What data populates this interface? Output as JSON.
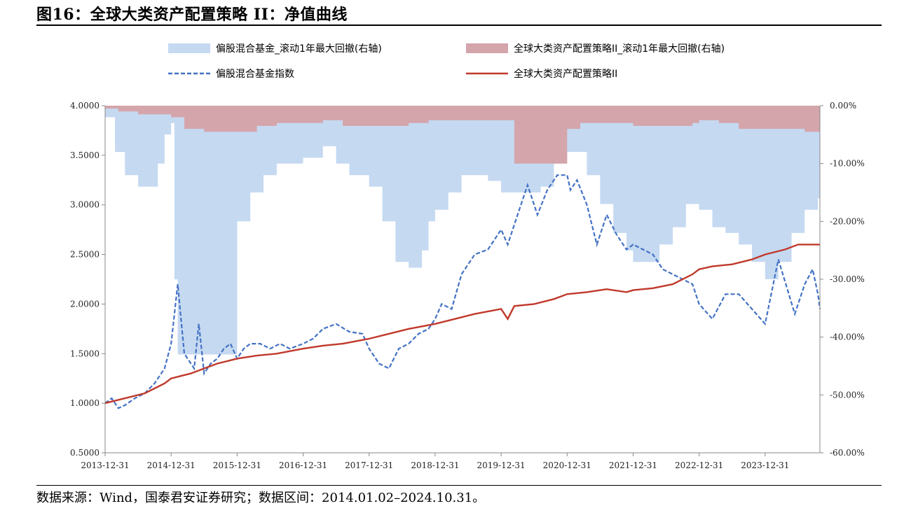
{
  "figure": {
    "title": "图16：全球大类资产配置策略 II：净值曲线",
    "source": "数据来源：Wind，国泰君安证券研究；数据区间：2014.01.02–2024.10.31。"
  },
  "colors": {
    "fund_index_line": "#4472C4",
    "strategy_line": "#C0392B",
    "fund_drawdown_area": "#C5D9F1",
    "strategy_drawdown_area": "#D4A5AB"
  },
  "chart_data": {
    "type": "line",
    "x_tick_labels": [
      "2013-12-31",
      "2014-12-31",
      "2015-12-31",
      "2016-12-31",
      "2017-12-31",
      "2018-12-31",
      "2019-12-31",
      "2020-12-31",
      "2021-12-31",
      "2022-12-31",
      "2023-12-31"
    ],
    "y_left": {
      "ticks": [
        "4.0000",
        "3.5000",
        "3.0000",
        "2.5000",
        "2.0000",
        "1.5000",
        "1.0000",
        "0.5000"
      ],
      "ylim": [
        0.5,
        4.0
      ]
    },
    "y_right": {
      "ticks": [
        "0.00%",
        "-10.00%",
        "-20.00%",
        "-30.00%",
        "-40.00%",
        "-50.00%",
        "-60.00%"
      ],
      "ylim": [
        -60,
        0
      ]
    },
    "legend": [
      {
        "name": "偏股混合基金_滚动1年最大回撤(右轴)",
        "kind": "area"
      },
      {
        "name": "全球大类资产配置策略II_滚动1年最大回撤(右轴)",
        "kind": "area"
      },
      {
        "name": "偏股混合基金指数",
        "kind": "dashed-line"
      },
      {
        "name": "全球大类资产配置策略II",
        "kind": "line"
      }
    ],
    "series": [
      {
        "name": "偏股混合基金指数",
        "axis": "left",
        "x": [
          2014.0,
          2014.1,
          2014.2,
          2014.3,
          2014.45,
          2014.6,
          2014.75,
          2014.9,
          2015.0,
          2015.1,
          2015.2,
          2015.35,
          2015.42,
          2015.5,
          2015.6,
          2015.7,
          2015.8,
          2015.9,
          2016.0,
          2016.1,
          2016.2,
          2016.35,
          2016.5,
          2016.65,
          2016.8,
          2017.0,
          2017.15,
          2017.3,
          2017.5,
          2017.7,
          2017.9,
          2018.0,
          2018.15,
          2018.3,
          2018.45,
          2018.6,
          2018.75,
          2018.9,
          2019.0,
          2019.1,
          2019.25,
          2019.4,
          2019.6,
          2019.8,
          2020.0,
          2020.1,
          2020.25,
          2020.4,
          2020.55,
          2020.7,
          2020.85,
          2021.0,
          2021.05,
          2021.15,
          2021.3,
          2021.45,
          2021.6,
          2021.75,
          2021.9,
          2022.0,
          2022.15,
          2022.3,
          2022.45,
          2022.6,
          2022.75,
          2022.9,
          2023.0,
          2023.2,
          2023.4,
          2023.6,
          2023.8,
          2024.0,
          2024.2,
          2024.45,
          2024.6,
          2024.72,
          2024.8,
          2024.83
        ],
        "values": [
          1.0,
          1.05,
          0.95,
          0.98,
          1.05,
          1.1,
          1.2,
          1.35,
          1.6,
          2.2,
          1.5,
          1.35,
          1.8,
          1.3,
          1.4,
          1.45,
          1.55,
          1.6,
          1.45,
          1.55,
          1.6,
          1.6,
          1.55,
          1.6,
          1.55,
          1.6,
          1.65,
          1.75,
          1.8,
          1.72,
          1.7,
          1.55,
          1.4,
          1.35,
          1.55,
          1.6,
          1.7,
          1.75,
          1.85,
          2.0,
          1.95,
          2.3,
          2.5,
          2.55,
          2.75,
          2.6,
          2.9,
          3.2,
          2.9,
          3.15,
          3.3,
          3.3,
          3.15,
          3.25,
          3.0,
          2.6,
          2.9,
          2.7,
          2.55,
          2.6,
          2.55,
          2.5,
          2.35,
          2.3,
          2.25,
          2.2,
          2.0,
          1.85,
          2.1,
          2.1,
          1.95,
          1.8,
          2.45,
          1.9,
          2.2,
          2.35,
          2.1,
          1.95
        ]
      },
      {
        "name": "全球大类资产配置策略II",
        "axis": "left",
        "x": [
          2014.0,
          2014.3,
          2014.6,
          2014.9,
          2015.0,
          2015.3,
          2015.5,
          2015.7,
          2016.0,
          2016.3,
          2016.6,
          2017.0,
          2017.3,
          2017.6,
          2018.0,
          2018.3,
          2018.6,
          2019.0,
          2019.3,
          2019.6,
          2020.0,
          2020.1,
          2020.2,
          2020.5,
          2020.8,
          2021.0,
          2021.3,
          2021.6,
          2021.9,
          2022.0,
          2022.3,
          2022.6,
          2022.9,
          2023.0,
          2023.2,
          2023.5,
          2023.8,
          2024.0,
          2024.3,
          2024.5,
          2024.83
        ],
        "values": [
          1.0,
          1.05,
          1.1,
          1.2,
          1.25,
          1.3,
          1.35,
          1.4,
          1.45,
          1.48,
          1.5,
          1.55,
          1.58,
          1.6,
          1.65,
          1.7,
          1.75,
          1.8,
          1.85,
          1.9,
          1.95,
          1.85,
          1.98,
          2.0,
          2.05,
          2.1,
          2.12,
          2.15,
          2.12,
          2.14,
          2.16,
          2.2,
          2.3,
          2.35,
          2.38,
          2.4,
          2.45,
          2.5,
          2.55,
          2.6,
          2.6
        ]
      },
      {
        "name": "偏股混合基金_滚动1年最大回撤(右轴)",
        "axis": "right",
        "x": [
          2014.0,
          2014.15,
          2014.3,
          2014.5,
          2014.7,
          2014.8,
          2014.9,
          2015.0,
          2015.05,
          2015.1,
          2015.4,
          2015.6,
          2015.9,
          2016.0,
          2016.2,
          2016.4,
          2016.6,
          2016.9,
          2017.0,
          2017.3,
          2017.5,
          2017.7,
          2018.0,
          2018.2,
          2018.4,
          2018.6,
          2018.8,
          2018.9,
          2019.0,
          2019.2,
          2019.4,
          2019.6,
          2019.8,
          2020.0,
          2020.2,
          2020.4,
          2020.6,
          2020.8,
          2021.0,
          2021.1,
          2021.3,
          2021.5,
          2021.7,
          2021.9,
          2022.0,
          2022.2,
          2022.4,
          2022.6,
          2022.8,
          2023.0,
          2023.2,
          2023.4,
          2023.6,
          2023.8,
          2024.0,
          2024.2,
          2024.4,
          2024.6,
          2024.8,
          2024.83
        ],
        "values": [
          -2,
          -8,
          -12,
          -14,
          -14,
          -10,
          -5,
          -3,
          -30,
          -43,
          -43,
          -43,
          -43,
          -20,
          -15,
          -12,
          -10,
          -10,
          -9,
          -7,
          -10,
          -12,
          -14,
          -20,
          -27,
          -28,
          -25,
          -20,
          -18,
          -15,
          -12,
          -12,
          -13,
          -15,
          -15,
          -15,
          -14,
          -10,
          -8,
          -8,
          -12,
          -17,
          -22,
          -25,
          -27,
          -27,
          -24,
          -21,
          -17,
          -18,
          -21,
          -22,
          -24,
          -27,
          -30,
          -27,
          -22,
          -18,
          -16,
          -15
        ]
      },
      {
        "name": "全球大类资产配置策略II_滚动1年最大回撤(右轴)",
        "axis": "right",
        "x": [
          2014.0,
          2014.2,
          2014.5,
          2014.8,
          2015.0,
          2015.2,
          2015.5,
          2015.8,
          2016.0,
          2016.3,
          2016.6,
          2016.9,
          2017.0,
          2017.3,
          2017.6,
          2017.9,
          2018.0,
          2018.3,
          2018.6,
          2018.9,
          2019.0,
          2019.3,
          2019.6,
          2019.9,
          2020.0,
          2020.2,
          2020.4,
          2020.6,
          2020.8,
          2021.0,
          2021.2,
          2021.5,
          2021.8,
          2022.0,
          2022.3,
          2022.6,
          2022.9,
          2023.0,
          2023.3,
          2023.6,
          2023.9,
          2024.0,
          2024.3,
          2024.6,
          2024.83
        ],
        "values": [
          -0.5,
          -1,
          -1.5,
          -1.5,
          -2,
          -4,
          -4.5,
          -4.5,
          -4.5,
          -3.5,
          -3,
          -3,
          -3,
          -2.5,
          -3.5,
          -3.5,
          -3.5,
          -3.5,
          -3,
          -2.5,
          -2.5,
          -2.5,
          -2.5,
          -2.5,
          -2.5,
          -10,
          -10,
          -10,
          -10,
          -4,
          -3,
          -3,
          -3,
          -3.5,
          -3.5,
          -3.5,
          -3,
          -2.5,
          -3,
          -4,
          -4,
          -4,
          -4,
          -4.5,
          -4.5
        ]
      }
    ]
  }
}
